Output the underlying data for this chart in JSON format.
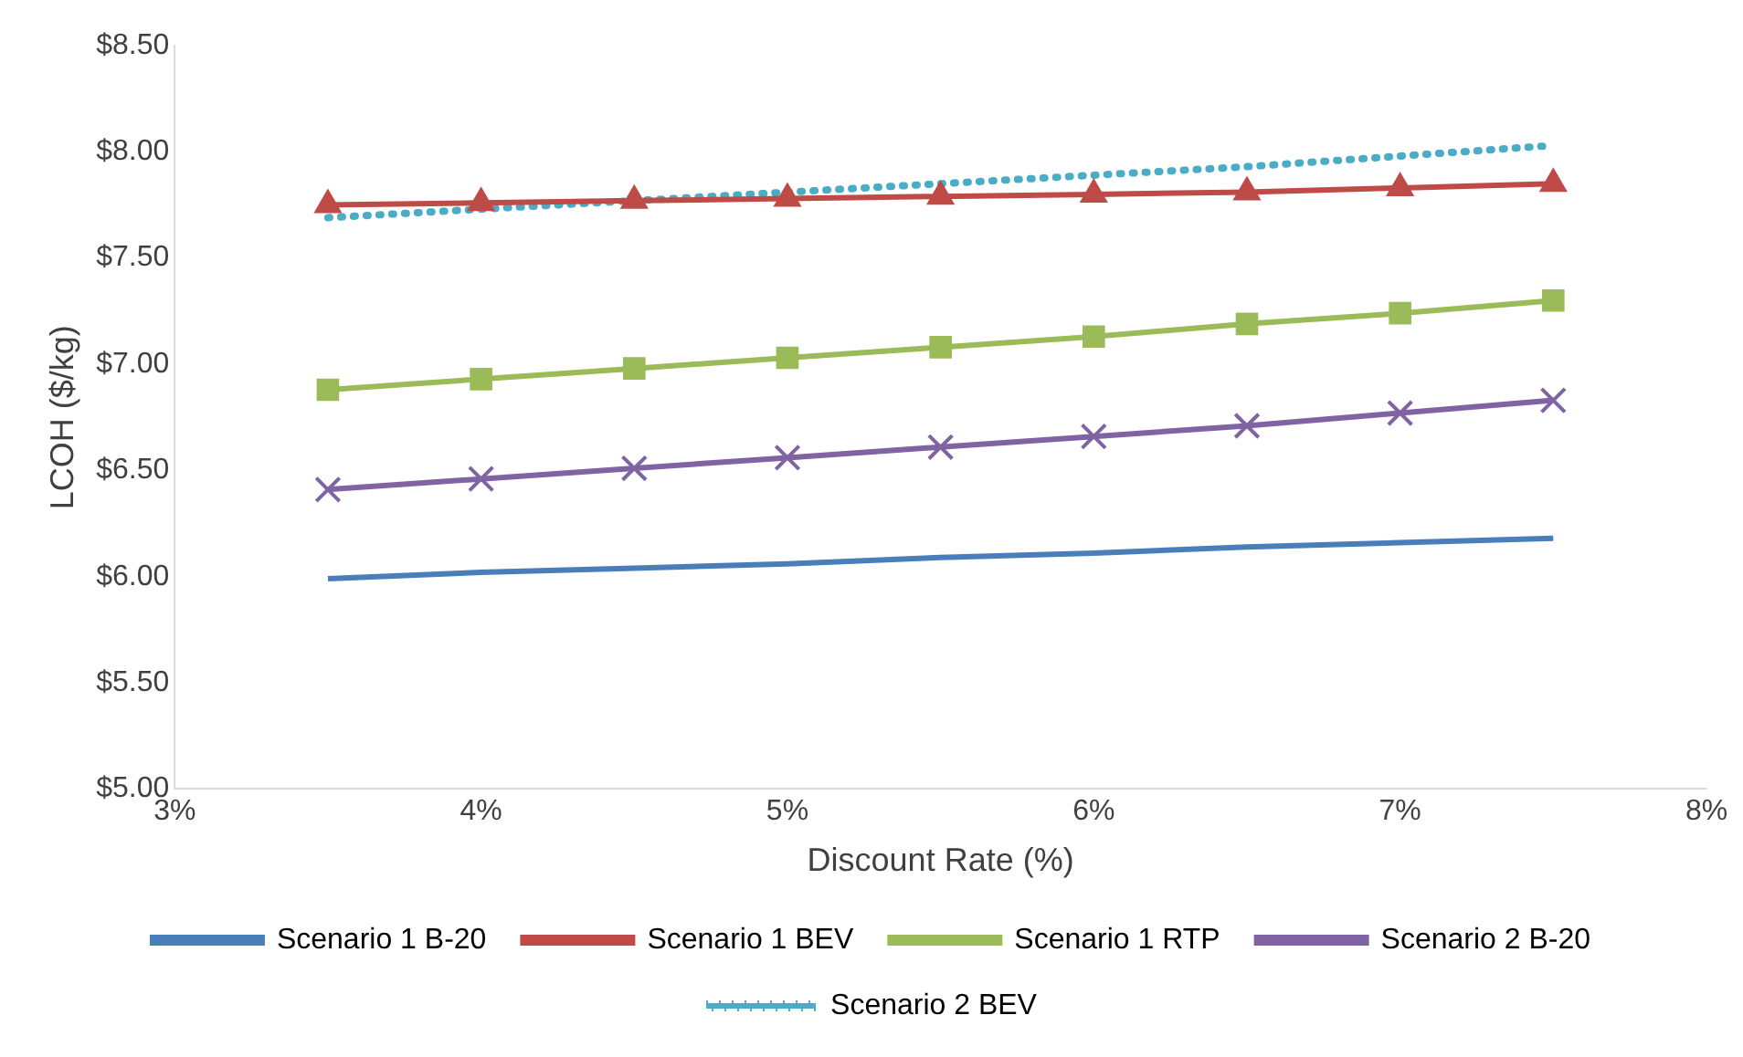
{
  "chart_data": {
    "type": "line",
    "xlabel": "Discount Rate (%)",
    "ylabel": "LCOH ($/kg)",
    "x": [
      3.5,
      4,
      4.5,
      5,
      5.5,
      6,
      6.5,
      7,
      7.5
    ],
    "xlim": [
      3,
      8
    ],
    "xticks": [
      {
        "value": 3,
        "label": "3%"
      },
      {
        "value": 4,
        "label": "4%"
      },
      {
        "value": 5,
        "label": "5%"
      },
      {
        "value": 6,
        "label": "6%"
      },
      {
        "value": 7,
        "label": "7%"
      },
      {
        "value": 8,
        "label": "8%"
      }
    ],
    "ylim": [
      5,
      8.5
    ],
    "yticks": [
      {
        "value": 5,
        "label": "$5.00"
      },
      {
        "value": 5.5,
        "label": "$5.50"
      },
      {
        "value": 6,
        "label": "$6.00"
      },
      {
        "value": 6.5,
        "label": "$6.50"
      },
      {
        "value": 7,
        "label": "$7.00"
      },
      {
        "value": 7.5,
        "label": "$7.50"
      },
      {
        "value": 8,
        "label": "$8.00"
      },
      {
        "value": 8.5,
        "label": "$8.50"
      }
    ],
    "grid": false,
    "legend": "bottom",
    "series": [
      {
        "name": "Scenario 1 B-20",
        "color": "#4a7ebb",
        "marker": "none",
        "line_style": "solid",
        "values": [
          5.99,
          6.02,
          6.04,
          6.06,
          6.09,
          6.11,
          6.14,
          6.16,
          6.18
        ]
      },
      {
        "name": "Scenario 1 BEV",
        "color": "#be4b48",
        "marker": "triangle",
        "line_style": "solid",
        "values": [
          7.75,
          7.76,
          7.77,
          7.78,
          7.79,
          7.8,
          7.81,
          7.83,
          7.85
        ]
      },
      {
        "name": "Scenario 1 RTP",
        "color": "#9bbb59",
        "marker": "square",
        "line_style": "solid",
        "values": [
          6.88,
          6.93,
          6.98,
          7.03,
          7.08,
          7.13,
          7.19,
          7.24,
          7.3
        ]
      },
      {
        "name": "Scenario 2 B-20",
        "color": "#7f63a2",
        "marker": "cross",
        "line_style": "solid",
        "values": [
          6.41,
          6.46,
          6.51,
          6.56,
          6.61,
          6.66,
          6.71,
          6.77,
          6.83
        ]
      },
      {
        "name": "Scenario 2 BEV",
        "color": "#4bacc6",
        "marker": "none",
        "line_style": "dotted",
        "values": [
          7.69,
          7.73,
          7.77,
          7.81,
          7.85,
          7.89,
          7.93,
          7.98,
          8.03
        ]
      }
    ]
  }
}
